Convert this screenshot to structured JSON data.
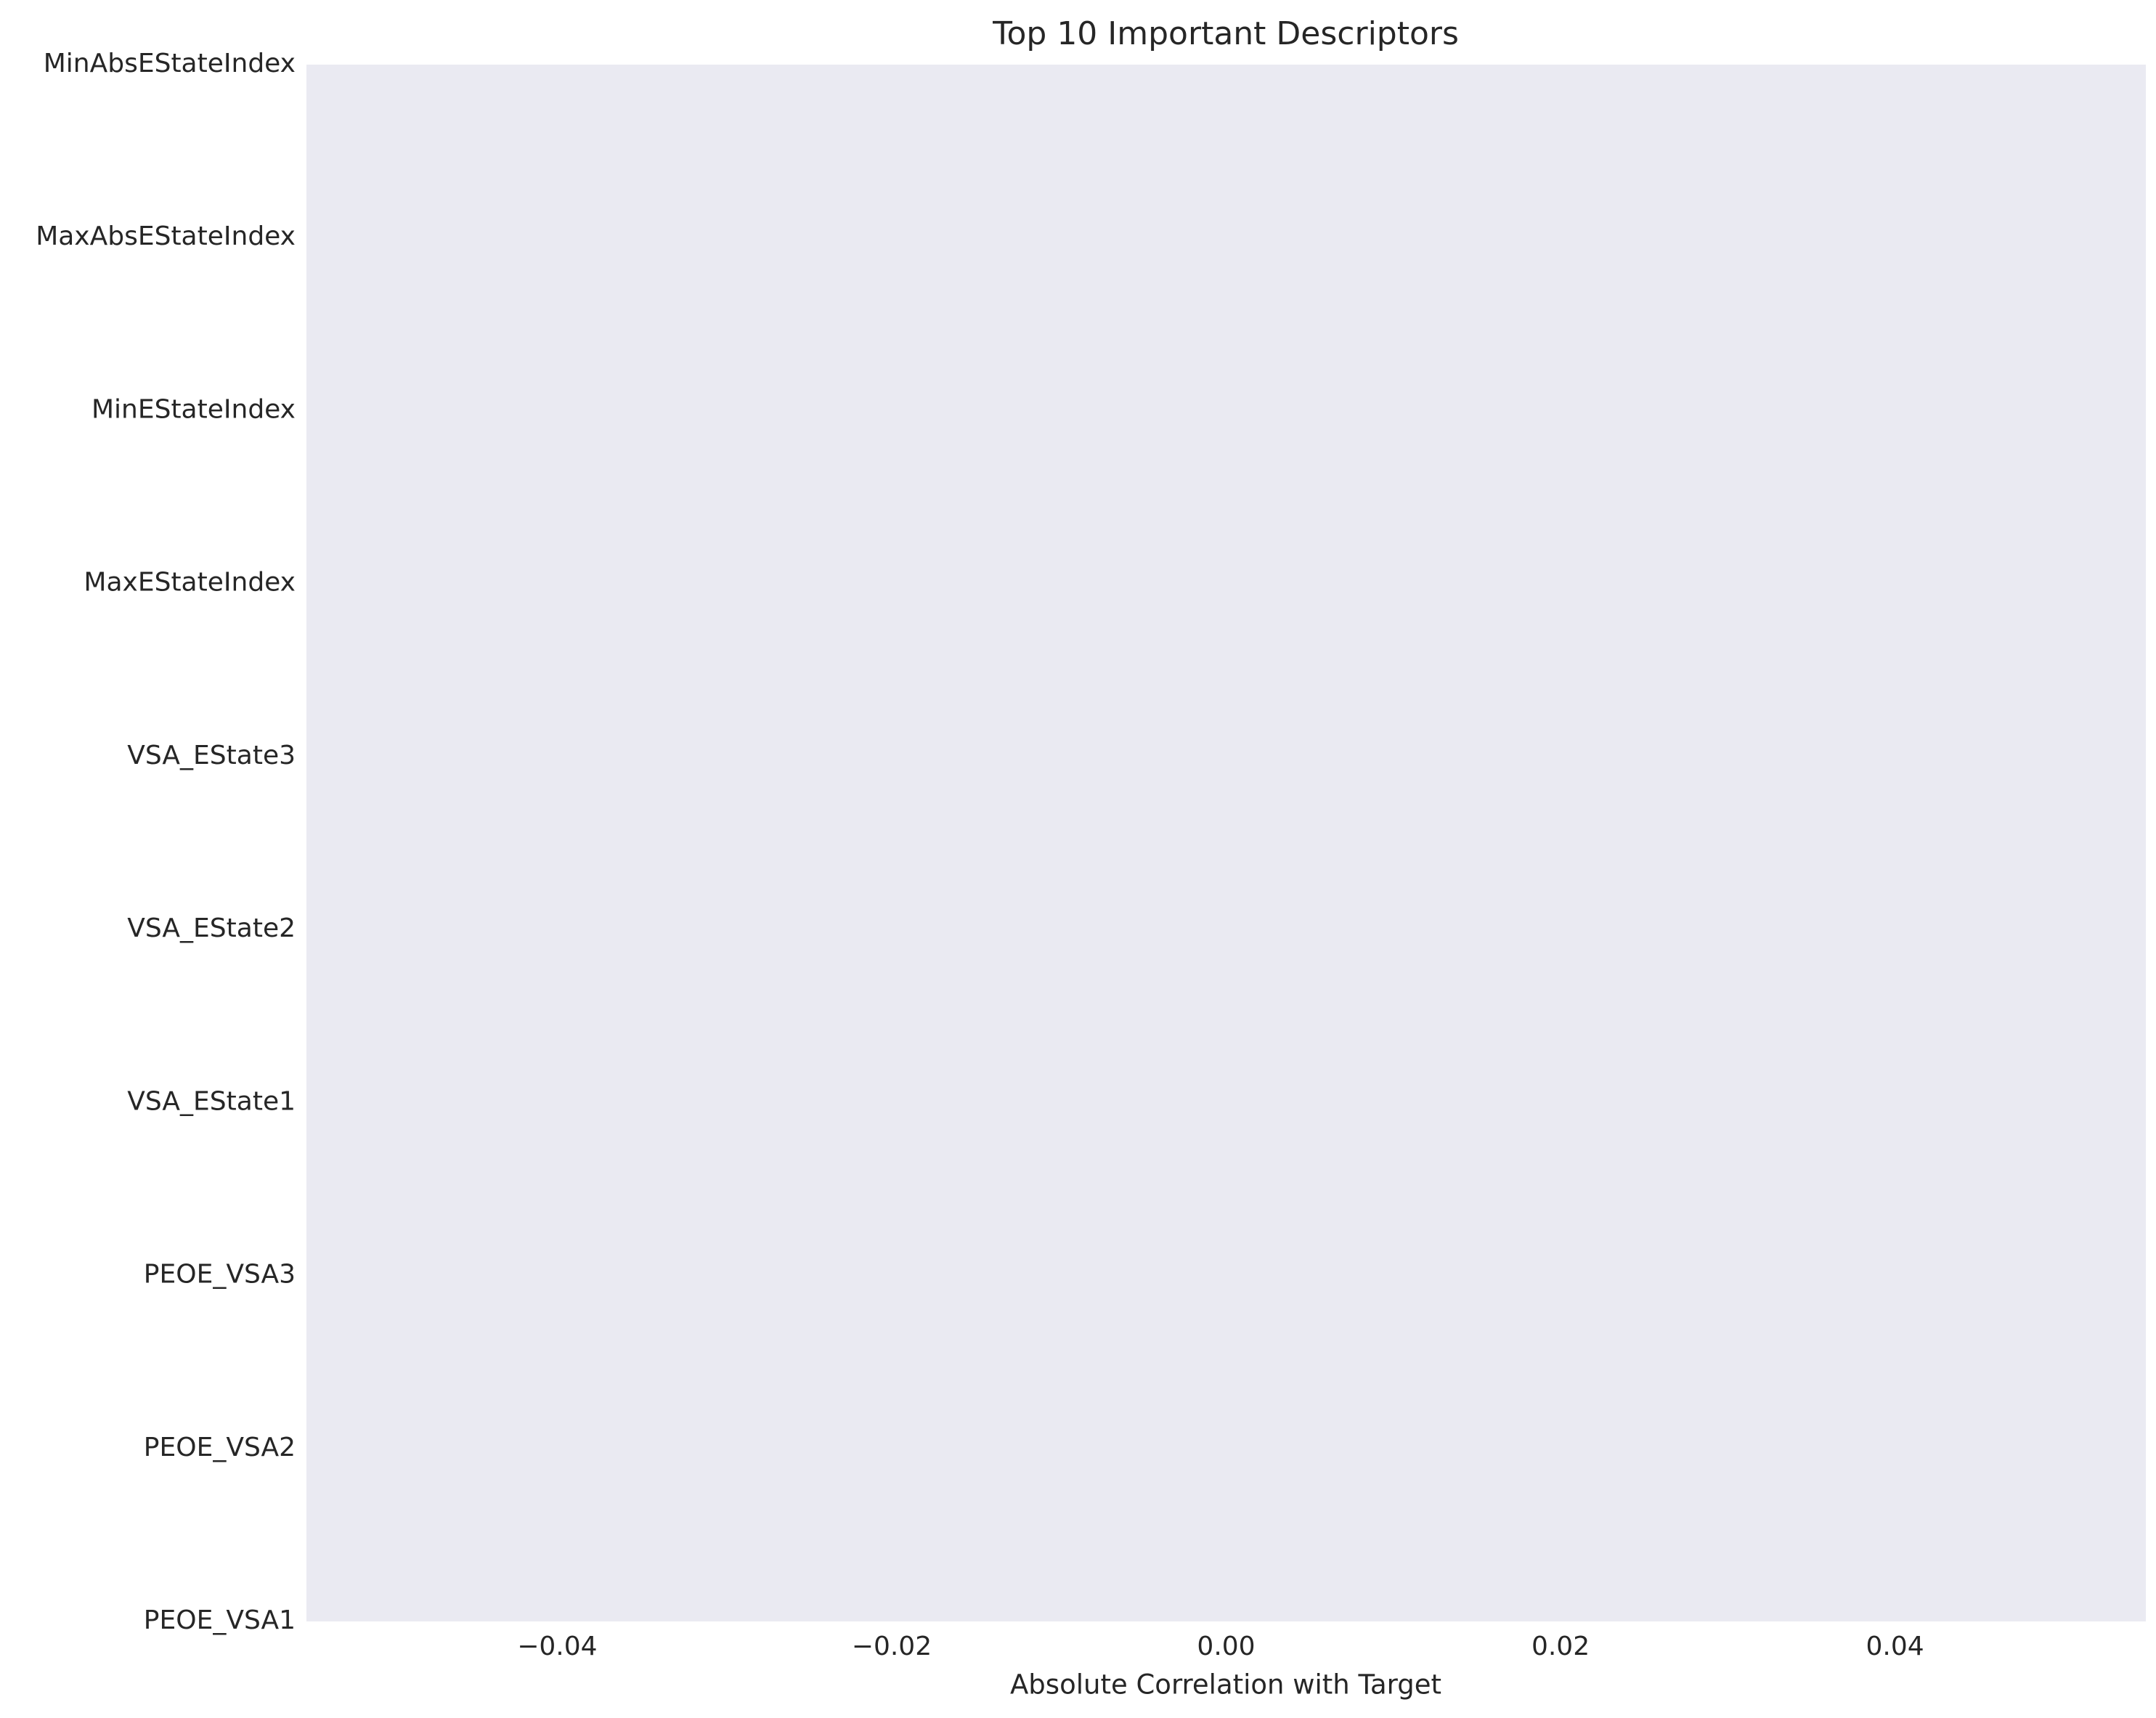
{
  "chart_data": {
    "type": "barh",
    "title": "Top 10 Important Descriptors",
    "xlabel": "Absolute Correlation with Target",
    "categories": [
      "MinAbsEStateIndex",
      "MaxAbsEStateIndex",
      "MinEStateIndex",
      "MaxEStateIndex",
      "VSA_EState3",
      "VSA_EState2",
      "VSA_EState1",
      "PEOE_VSA3",
      "PEOE_VSA2",
      "PEOE_VSA1"
    ],
    "values": [
      0,
      0,
      0,
      0,
      0,
      0,
      0,
      0,
      0,
      0
    ],
    "color": "#4c72b0",
    "xlim": [
      -0.055,
      0.055
    ],
    "xticks": [
      {
        "value": -0.04,
        "label": "−0.04"
      },
      {
        "value": -0.02,
        "label": "−0.02"
      },
      {
        "value": 0,
        "label": "0.00"
      },
      {
        "value": 0.02,
        "label": "0.02"
      },
      {
        "value": 0.04,
        "label": "0.04"
      }
    ],
    "grid": false
  }
}
